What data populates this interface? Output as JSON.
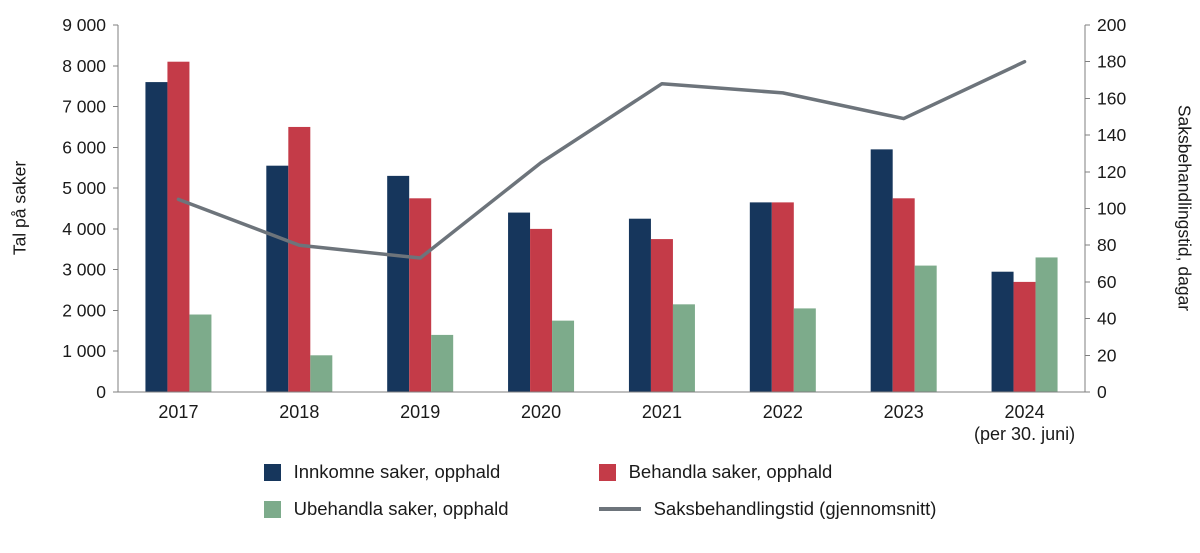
{
  "chart_data": {
    "type": "bar",
    "title": "",
    "categories": [
      "2017",
      "2018",
      "2019",
      "2020",
      "2021",
      "2022",
      "2023",
      "2024"
    ],
    "category_sublabels": [
      "",
      "",
      "",
      "",
      "",
      "",
      "",
      "(per 30. juni)"
    ],
    "bar_series": [
      {
        "name": "Innkomne saker, opphald",
        "color": "#16365c",
        "values": [
          7600,
          5550,
          5300,
          4400,
          4250,
          4650,
          5950,
          2950
        ]
      },
      {
        "name": "Behandla saker, opphald",
        "color": "#c43b48",
        "values": [
          8100,
          6500,
          4750,
          4000,
          3750,
          4650,
          4750,
          2700
        ]
      },
      {
        "name": "Ubehandla saker, opphald",
        "color": "#7dab8b",
        "values": [
          1900,
          900,
          1400,
          1750,
          2150,
          2050,
          3100,
          3300
        ]
      }
    ],
    "line_series": {
      "name": "Saksbehandlingstid (gjennomsnitt)",
      "color": "#6d747b",
      "values": [
        105,
        80,
        73,
        125,
        168,
        163,
        149,
        180
      ]
    },
    "left_axis": {
      "label": "Tal på saker",
      "min": 0,
      "max": 9000,
      "step": 1000,
      "ticks": [
        "0",
        "1 000",
        "2 000",
        "3 000",
        "4 000",
        "5 000",
        "6 000",
        "7 000",
        "8 000",
        "9 000"
      ]
    },
    "right_axis": {
      "label": "Saksbehandlingstid, dagar",
      "min": 0,
      "max": 200,
      "step": 20,
      "ticks": [
        "0",
        "20",
        "40",
        "60",
        "80",
        "100",
        "120",
        "140",
        "160",
        "180",
        "200"
      ]
    },
    "grid": "off",
    "legend_position": "bottom"
  },
  "legend": {
    "items": [
      {
        "label": "Innkomne saker, opphald",
        "type": "square",
        "color": "#16365c"
      },
      {
        "label": "Behandla saker, opphald",
        "type": "square",
        "color": "#c43b48"
      },
      {
        "label": "Ubehandla saker, opphald",
        "type": "square",
        "color": "#7dab8b"
      },
      {
        "label": "Saksbehandlingstid (gjennomsnitt)",
        "type": "line",
        "color": "#6d747b"
      }
    ]
  }
}
